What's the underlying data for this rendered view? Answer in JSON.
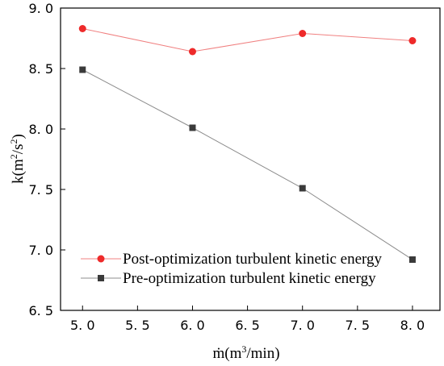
{
  "chart_data": {
    "type": "line",
    "x": [
      5.0,
      6.0,
      7.0,
      8.0
    ],
    "xlim": [
      4.8,
      8.25
    ],
    "ylim": [
      6.5,
      9.0
    ],
    "xticks": [
      5.0,
      5.5,
      6.0,
      6.5,
      7.0,
      7.5,
      8.0
    ],
    "yticks": [
      6.5,
      7.0,
      7.5,
      8.0,
      8.5,
      9.0
    ],
    "xtick_labels": [
      "5. 0",
      "5. 5",
      "6. 0",
      "6. 5",
      "7. 0",
      "7. 5",
      "8. 0"
    ],
    "ytick_labels": [
      "6. 5",
      "7. 0",
      "7. 5",
      "8. 0",
      "8. 5",
      "9. 0"
    ],
    "xlabel": {
      "base": "ṁ(m",
      "sup": "3",
      "tail": "/min)"
    },
    "ylabel": {
      "base": "k(m",
      "sup1": "2",
      "mid": "/s",
      "sup2": "2",
      "tail": ")"
    },
    "legend_position": "lower-left",
    "series": [
      {
        "name": "Post-optimization turbulent kinetic energy",
        "values": [
          8.83,
          8.64,
          8.79,
          8.73
        ],
        "line_color": "#f08080",
        "marker": "circle",
        "marker_color": "#ee2a2a"
      },
      {
        "name": "Pre-optimization turbulent kinetic energy",
        "values": [
          8.49,
          8.01,
          7.51,
          6.92
        ],
        "line_color": "#8c8c8c",
        "marker": "square",
        "marker_color": "#3a3a3a"
      }
    ]
  }
}
